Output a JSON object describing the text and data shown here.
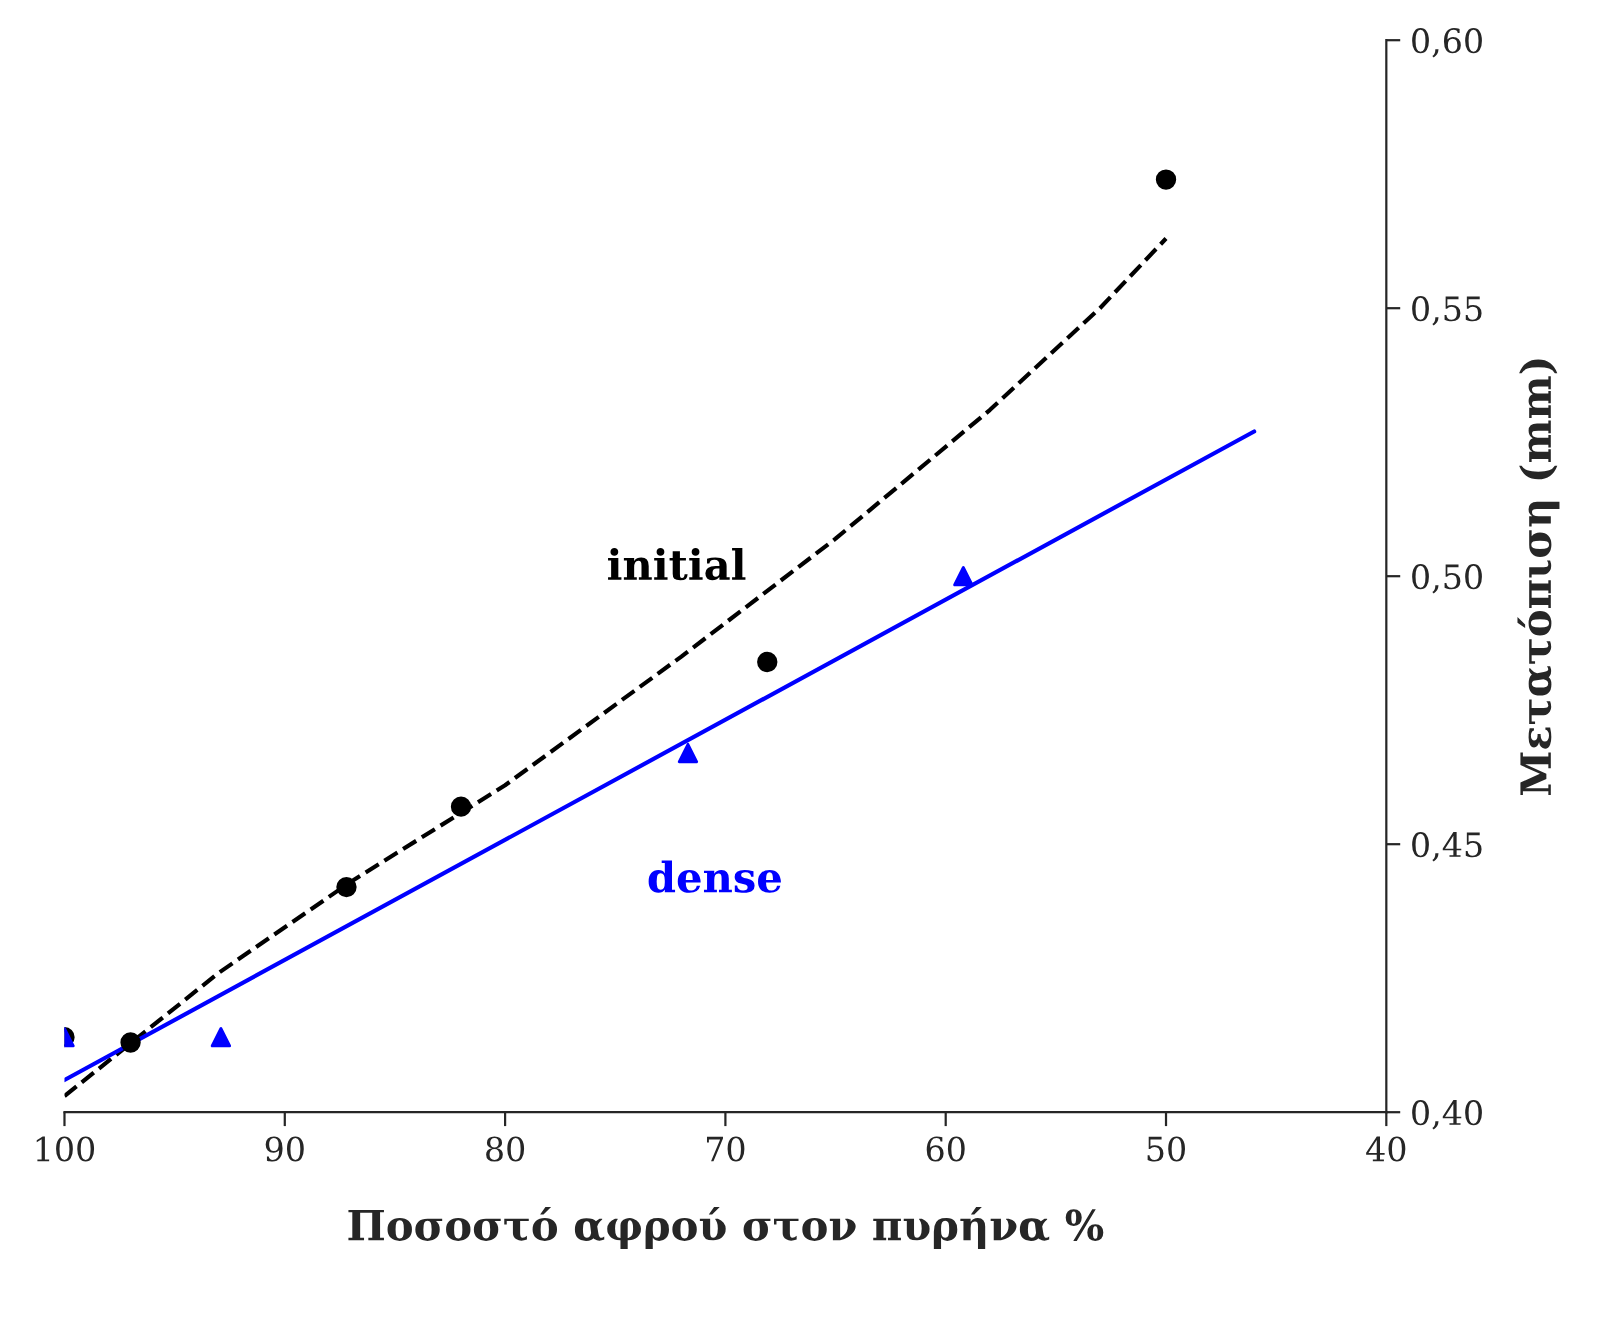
{
  "chart_data": {
    "type": "scatter",
    "xlabel": "Ποσοστό αφρού στον πυρήνα %",
    "ylabel": "Μετατόπιση (mm)",
    "xlim": [
      100,
      40
    ],
    "xticks": [
      100,
      90,
      80,
      70,
      60,
      50,
      40
    ],
    "ylim": [
      0.4,
      0.6
    ],
    "yticks": [
      {
        "value": 0.4,
        "label": "0,40"
      },
      {
        "value": 0.45,
        "label": "0,45"
      },
      {
        "value": 0.5,
        "label": "0,50"
      },
      {
        "value": 0.55,
        "label": "0,55"
      },
      {
        "value": 0.6,
        "label": "0,60"
      }
    ],
    "grid": false,
    "legend": false,
    "series": [
      {
        "type": "line",
        "name": "initial",
        "color": "#000000",
        "line_style": "dashed",
        "marker": "none",
        "x": [
          100,
          93,
          87,
          80,
          72,
          65,
          58,
          53,
          50
        ],
        "values": [
          0.403,
          0.426,
          0.443,
          0.461,
          0.485,
          0.507,
          0.531,
          0.55,
          0.563
        ]
      },
      {
        "type": "line",
        "name": "dense",
        "color": "#0000ff",
        "line_style": "solid",
        "marker": "none",
        "x": [
          100,
          46
        ],
        "values": [
          0.406,
          0.527
        ]
      },
      {
        "color": "#000000",
        "marker": "circle",
        "x": [
          100,
          97,
          87.2,
          82,
          68.1,
          50
        ],
        "values": [
          0.414,
          0.413,
          0.442,
          0.457,
          0.484,
          0.574
        ]
      },
      {
        "color": "#0000ff",
        "marker": "triangle",
        "x": [
          100,
          92.9,
          71.7,
          59.2
        ],
        "values": [
          0.414,
          0.414,
          0.467,
          0.5
        ]
      }
    ]
  }
}
